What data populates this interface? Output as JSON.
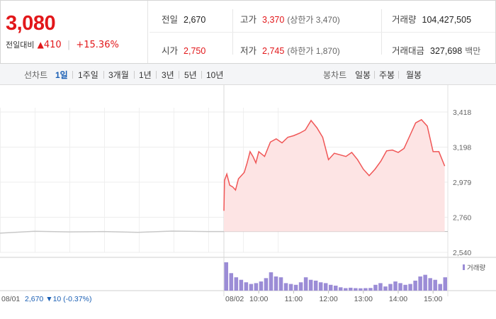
{
  "summary": {
    "current_price": "3,080",
    "change_label": "전일대비",
    "change_arrow": "▲",
    "change_amount": "410",
    "change_percent": "+15.36%"
  },
  "stats": [
    {
      "key": "전일",
      "value": "2,670",
      "sub": "",
      "red": false
    },
    {
      "key": "고가",
      "value": "3,370",
      "sub": "(상한가 3,470)",
      "red": true
    },
    {
      "key": "거래량",
      "value": "104,427,505",
      "sub": "",
      "red": false
    },
    {
      "key": "시가",
      "value": "2,750",
      "sub": "",
      "red": true
    },
    {
      "key": "저가",
      "value": "2,745",
      "sub": "(하한가 1,870)",
      "red": true
    },
    {
      "key": "거래대금",
      "value": "327,698",
      "sub": "백만",
      "red": false
    }
  ],
  "tabs": {
    "line_label": "선차트",
    "line_items": [
      "1일",
      "1주일",
      "3개월",
      "1년",
      "3년",
      "5년",
      "10년"
    ],
    "selected": "1일",
    "candle_label": "봉차트",
    "candle_items": [
      "일봉",
      "주봉",
      "월봉"
    ]
  },
  "colors": {
    "up": "#e2171a",
    "down": "#1a5fb4",
    "line": "#f05656",
    "fill": "#fde4e4",
    "prev_line": "#c8c8c8",
    "volume": "#9b8cd6"
  },
  "chart_data": {
    "type": "area",
    "y_ticks": [
      "3,418",
      "3,198",
      "2,979",
      "2,760",
      "2,540"
    ],
    "ylim": [
      2540,
      3418
    ],
    "x_ticks": [
      "10:00",
      "11:00",
      "12:00",
      "13:00",
      "14:00",
      "15:00"
    ],
    "prev_day_label": "08/01",
    "prev_day_close": "2,670",
    "prev_day_change_arrow": "▼",
    "prev_day_change": "10",
    "prev_day_change_pct": "(-0.37%)",
    "today_label": "08/02",
    "volume_legend": "거래량",
    "prev_day_series": [
      {
        "x": "08/01 09:00",
        "y": 2660
      },
      {
        "x": "08/01 10:00",
        "y": 2672
      },
      {
        "x": "08/01 11:00",
        "y": 2668
      },
      {
        "x": "08/01 12:00",
        "y": 2670
      },
      {
        "x": "08/01 13:00",
        "y": 2665
      },
      {
        "x": "08/01 14:00",
        "y": 2673
      },
      {
        "x": "08/01 15:00",
        "y": 2670
      },
      {
        "x": "08/01 15:30",
        "y": 2670
      }
    ],
    "series": [
      {
        "x": "09:00",
        "y": 2800
      },
      {
        "x": "09:01",
        "y": 2990
      },
      {
        "x": "09:05",
        "y": 3030
      },
      {
        "x": "09:10",
        "y": 2960
      },
      {
        "x": "09:15",
        "y": 2950
      },
      {
        "x": "09:20",
        "y": 2930
      },
      {
        "x": "09:25",
        "y": 3000
      },
      {
        "x": "09:35",
        "y": 3040
      },
      {
        "x": "09:40",
        "y": 3100
      },
      {
        "x": "09:45",
        "y": 3170
      },
      {
        "x": "09:50",
        "y": 3140
      },
      {
        "x": "09:55",
        "y": 3100
      },
      {
        "x": "10:00",
        "y": 3170
      },
      {
        "x": "10:10",
        "y": 3140
      },
      {
        "x": "10:20",
        "y": 3230
      },
      {
        "x": "10:30",
        "y": 3250
      },
      {
        "x": "10:40",
        "y": 3225
      },
      {
        "x": "10:50",
        "y": 3260
      },
      {
        "x": "11:00",
        "y": 3270
      },
      {
        "x": "11:10",
        "y": 3285
      },
      {
        "x": "11:20",
        "y": 3305
      },
      {
        "x": "11:30",
        "y": 3365
      },
      {
        "x": "11:40",
        "y": 3320
      },
      {
        "x": "11:50",
        "y": 3260
      },
      {
        "x": "12:00",
        "y": 3120
      },
      {
        "x": "12:10",
        "y": 3160
      },
      {
        "x": "12:20",
        "y": 3150
      },
      {
        "x": "12:30",
        "y": 3140
      },
      {
        "x": "12:40",
        "y": 3165
      },
      {
        "x": "12:50",
        "y": 3120
      },
      {
        "x": "13:00",
        "y": 3060
      },
      {
        "x": "13:10",
        "y": 3020
      },
      {
        "x": "13:20",
        "y": 3060
      },
      {
        "x": "13:30",
        "y": 3110
      },
      {
        "x": "13:40",
        "y": 3175
      },
      {
        "x": "13:50",
        "y": 3180
      },
      {
        "x": "14:00",
        "y": 3165
      },
      {
        "x": "14:10",
        "y": 3190
      },
      {
        "x": "14:20",
        "y": 3270
      },
      {
        "x": "14:30",
        "y": 3350
      },
      {
        "x": "14:40",
        "y": 3370
      },
      {
        "x": "14:50",
        "y": 3330
      },
      {
        "x": "15:00",
        "y": 3170
      },
      {
        "x": "15:10",
        "y": 3170
      },
      {
        "x": "15:20",
        "y": 3080
      }
    ],
    "volume": [
      3400,
      2100,
      1600,
      1300,
      1000,
      800,
      900,
      1100,
      1500,
      2200,
      1700,
      1600,
      900,
      800,
      700,
      1000,
      1600,
      1300,
      1200,
      1000,
      900,
      700,
      600,
      400,
      300,
      350,
      300,
      280,
      300,
      320,
      700,
      900,
      500,
      800,
      1100,
      900,
      700,
      800,
      1200,
      1700,
      1900,
      1500,
      1300,
      800,
      1600
    ]
  }
}
